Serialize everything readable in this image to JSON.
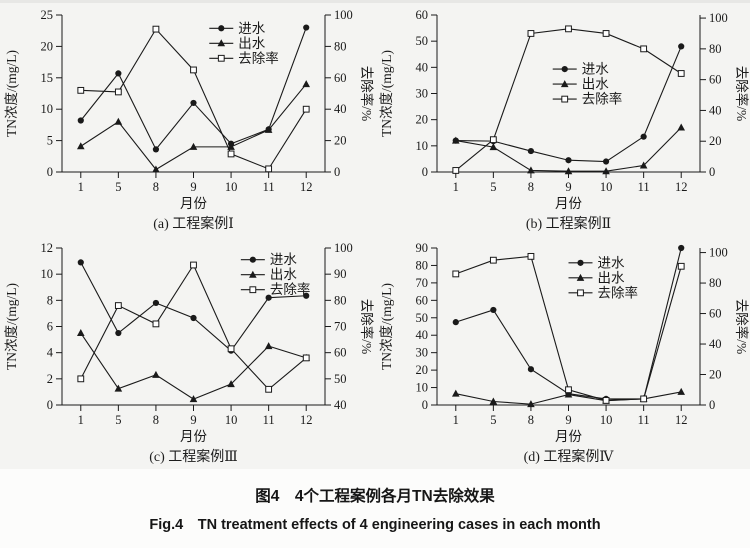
{
  "figure": {
    "caption_zh": "图4  4个工程案例各月TN去除效果",
    "caption_en": "Fig.4  TN treatment effects of 4 engineering cases in each month"
  },
  "legend": [
    {
      "id": "influent",
      "label": "进水",
      "marker": "filled-circle"
    },
    {
      "id": "effluent",
      "label": "出水",
      "marker": "filled-triangle"
    },
    {
      "id": "removal_rate",
      "label": "去除率",
      "marker": "open-square"
    }
  ],
  "chart_data": [
    {
      "type": "line",
      "title": "(a) 工程案例Ⅰ",
      "categories": [
        "1",
        "5",
        "8",
        "9",
        "10",
        "11",
        "12"
      ],
      "xlabel": "月份",
      "ylabel_left": "TN浓度/(mg/L)",
      "ylabel_right": "去除率/%",
      "ylim_left": [
        0,
        25
      ],
      "yticks_left": [
        0,
        5,
        10,
        15,
        20,
        25
      ],
      "ylim_right": [
        0,
        100
      ],
      "yticks_right": [
        0,
        20,
        40,
        60,
        80,
        100
      ],
      "grid": false,
      "legend_pos": [
        0.56,
        0.04
      ],
      "series": [
        {
          "id": "influent",
          "name": "进水",
          "axis": "left",
          "marker": "circle",
          "values": [
            8.2,
            15.7,
            3.6,
            11,
            4.5,
            6.8,
            23
          ]
        },
        {
          "id": "effluent",
          "name": "出水",
          "axis": "left",
          "marker": "triangle",
          "values": [
            4.1,
            8,
            0.4,
            4,
            4,
            6.7,
            14
          ]
        },
        {
          "id": "removal_rate",
          "name": "去除率",
          "axis": "right",
          "marker": "square",
          "values": [
            52,
            51,
            91,
            65,
            11.5,
            2,
            40
          ]
        }
      ]
    },
    {
      "type": "line",
      "title": "(b) 工程案例Ⅱ",
      "categories": [
        "1",
        "5",
        "8",
        "9",
        "10",
        "11",
        "12"
      ],
      "xlabel": "月份",
      "ylabel_left": "TN浓度/(mg/L)",
      "ylabel_right": "去除率/%",
      "ylim_left": [
        0,
        60
      ],
      "yticks_left": [
        0,
        10,
        20,
        30,
        40,
        50,
        60
      ],
      "ylim_right": [
        0,
        102
      ],
      "yticks_right": [
        0,
        20,
        40,
        60,
        80,
        100
      ],
      "grid": false,
      "legend_pos": [
        0.44,
        0.3
      ],
      "series": [
        {
          "id": "influent",
          "name": "进水",
          "axis": "left",
          "marker": "circle",
          "values": [
            12,
            11.8,
            8,
            4.5,
            4,
            13.5,
            48
          ]
        },
        {
          "id": "effluent",
          "name": "出水",
          "axis": "left",
          "marker": "triangle",
          "values": [
            12,
            9.5,
            0.6,
            0.3,
            0.3,
            2.5,
            17
          ]
        },
        {
          "id": "removal_rate",
          "name": "去除率",
          "axis": "right",
          "marker": "square",
          "values": [
            1,
            21,
            90,
            93,
            90,
            80,
            64
          ]
        }
      ]
    },
    {
      "type": "line",
      "title": "(c) 工程案例Ⅲ",
      "categories": [
        "1",
        "5",
        "8",
        "9",
        "10",
        "11",
        "12"
      ],
      "xlabel": "月份",
      "ylabel_left": "TN浓度/(mg/L)",
      "ylabel_right": "去除率/%",
      "ylim_left": [
        0,
        12
      ],
      "yticks_left": [
        0,
        2,
        4,
        6,
        8,
        10,
        12
      ],
      "ylim_right": [
        40,
        100
      ],
      "yticks_right": [
        40,
        50,
        60,
        70,
        80,
        90,
        100
      ],
      "grid": false,
      "legend_pos": [
        0.68,
        0.03
      ],
      "series": [
        {
          "id": "influent",
          "name": "进水",
          "axis": "left",
          "marker": "circle",
          "values": [
            10.9,
            5.5,
            7.8,
            6.65,
            4.15,
            8.2,
            8.35
          ]
        },
        {
          "id": "effluent",
          "name": "出水",
          "axis": "left",
          "marker": "triangle",
          "values": [
            5.5,
            1.25,
            2.3,
            0.45,
            1.6,
            4.5,
            3.6
          ]
        },
        {
          "id": "removal_rate",
          "name": "去除率",
          "axis": "right",
          "marker": "square",
          "values": [
            50,
            78,
            71,
            93.5,
            61.5,
            46,
            58
          ]
        }
      ]
    },
    {
      "type": "line",
      "title": "(d) 工程案例Ⅳ",
      "categories": [
        "1",
        "5",
        "8",
        "9",
        "10",
        "11",
        "12"
      ],
      "xlabel": "月份",
      "ylabel_left": "TN浓度/(mg/L)",
      "ylabel_right": "去除率/%",
      "ylim_left": [
        0,
        90
      ],
      "yticks_left": [
        0,
        10,
        20,
        30,
        40,
        50,
        60,
        70,
        80,
        90
      ],
      "ylim_right": [
        0,
        103
      ],
      "yticks_right": [
        0,
        20,
        40,
        60,
        80,
        100
      ],
      "grid": false,
      "legend_pos": [
        0.5,
        0.05
      ],
      "series": [
        {
          "id": "influent",
          "name": "进水",
          "axis": "left",
          "marker": "circle",
          "values": [
            47.5,
            54.5,
            20.5,
            6.5,
            3.5,
            3.5,
            90
          ]
        },
        {
          "id": "effluent",
          "name": "出水",
          "axis": "left",
          "marker": "triangle",
          "values": [
            6.5,
            2,
            0.5,
            6,
            2.5,
            3.5,
            7.5
          ]
        },
        {
          "id": "removal_rate",
          "name": "去除率",
          "axis": "right",
          "marker": "square",
          "values": [
            86,
            95,
            97.5,
            10,
            3,
            4,
            91
          ]
        }
      ]
    }
  ]
}
